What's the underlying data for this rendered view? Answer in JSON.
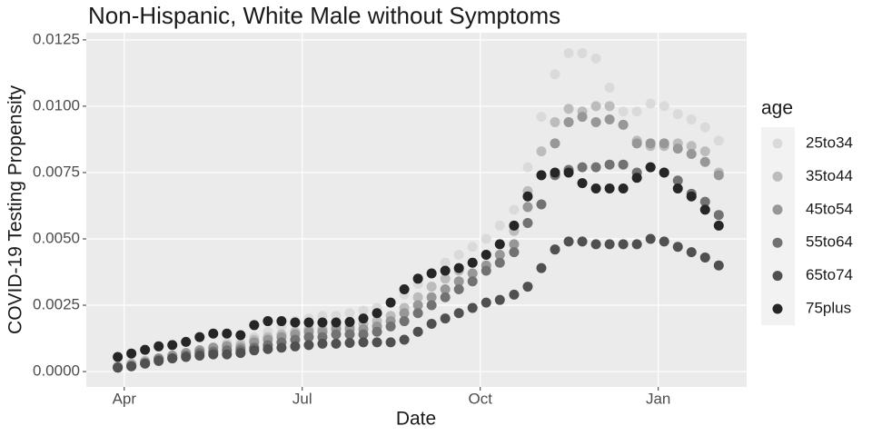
{
  "chart_data": {
    "type": "scatter",
    "title": "Non-Hispanic, White Male without Symptoms",
    "x_label": "Date",
    "y_label": "COVID-19 Testing Propensity",
    "legend_title": "age",
    "legend_position": "right",
    "grid": true,
    "xlim": [
      3.36,
      14.49
    ],
    "xticks": [
      {
        "value": 4,
        "label": "Apr"
      },
      {
        "value": 7,
        "label": "Jul"
      },
      {
        "value": 10,
        "label": "Oct"
      },
      {
        "value": 13,
        "label": "Jan"
      }
    ],
    "ylim": [
      -0.00058,
      0.01277
    ],
    "yticks": [
      {
        "value": 0,
        "label": "0.0000"
      },
      {
        "value": 0.0025,
        "label": "0.0025"
      },
      {
        "value": 0.005,
        "label": "0.0050"
      },
      {
        "value": 0.0075,
        "label": "0.0075"
      },
      {
        "value": 0.01,
        "label": "0.0100"
      },
      {
        "value": 0.0125,
        "label": "0.0125"
      }
    ],
    "x": [
      3.89,
      4.12,
      4.35,
      4.58,
      4.81,
      5.04,
      5.27,
      5.5,
      5.73,
      5.96,
      6.19,
      6.42,
      6.65,
      6.88,
      7.11,
      7.34,
      7.57,
      7.8,
      8.03,
      8.26,
      8.49,
      8.72,
      8.95,
      9.18,
      9.41,
      9.64,
      9.87,
      10.1,
      10.33,
      10.57,
      10.8,
      11.03,
      11.26,
      11.49,
      11.72,
      11.95,
      12.18,
      12.41,
      12.64,
      12.87,
      13.1,
      13.33,
      13.56,
      13.79,
      14.02
    ],
    "series": [
      {
        "name": "25to34",
        "color": "#dadada",
        "values": [
          0.0002,
          0.0003,
          0.0004,
          0.0005,
          0.0006,
          0.0007,
          0.0008,
          0.0009,
          0.0011,
          0.0011,
          0.0013,
          0.0015,
          0.0017,
          0.0019,
          0.002,
          0.0021,
          0.0021,
          0.0022,
          0.0023,
          0.0024,
          0.0026,
          0.0029,
          0.0033,
          0.0037,
          0.0041,
          0.0044,
          0.0047,
          0.005,
          0.0055,
          0.0061,
          0.0077,
          0.0096,
          0.0112,
          0.012,
          0.012,
          0.0118,
          0.0107,
          0.0098,
          0.0098,
          0.0101,
          0.01,
          0.0097,
          0.0095,
          0.0092,
          0.0087
        ]
      },
      {
        "name": "35to44",
        "color": "#bcbcbc",
        "values": [
          0.0002,
          0.0003,
          0.0004,
          0.0005,
          0.0006,
          0.0007,
          0.0008,
          0.0009,
          0.001,
          0.001,
          0.0012,
          0.0013,
          0.0014,
          0.0015,
          0.0016,
          0.0016,
          0.0017,
          0.0017,
          0.0018,
          0.0019,
          0.0021,
          0.0024,
          0.0028,
          0.0032,
          0.0035,
          0.0038,
          0.0041,
          0.0044,
          0.0048,
          0.0053,
          0.0068,
          0.0083,
          0.0094,
          0.0099,
          0.0098,
          0.01,
          0.01,
          0.0093,
          0.0087,
          0.0085,
          0.0085,
          0.0086,
          0.0085,
          0.0083,
          0.0075
        ]
      },
      {
        "name": "45to54",
        "color": "#979797",
        "values": [
          0.00015,
          0.00025,
          0.00035,
          0.0005,
          0.0006,
          0.0007,
          0.0008,
          0.0009,
          0.00095,
          0.0009,
          0.0011,
          0.0012,
          0.0013,
          0.0014,
          0.0015,
          0.0015,
          0.0016,
          0.0016,
          0.0016,
          0.0017,
          0.0019,
          0.0022,
          0.0025,
          0.0028,
          0.0031,
          0.0034,
          0.0037,
          0.004,
          0.0044,
          0.0048,
          0.0062,
          0.0074,
          0.0086,
          0.0094,
          0.0096,
          0.0094,
          0.0095,
          0.0093,
          0.0086,
          0.0086,
          0.0086,
          0.0084,
          0.0082,
          0.0079,
          0.0074
        ]
      },
      {
        "name": "55to64",
        "color": "#727272",
        "values": [
          0.00015,
          0.0002,
          0.0003,
          0.00045,
          0.0005,
          0.0006,
          0.0007,
          0.00075,
          0.0008,
          0.0008,
          0.0009,
          0.001,
          0.0011,
          0.0012,
          0.0013,
          0.0013,
          0.0014,
          0.0014,
          0.0014,
          0.0015,
          0.0017,
          0.0019,
          0.0022,
          0.0025,
          0.0028,
          0.0031,
          0.0034,
          0.0038,
          0.0041,
          0.0045,
          0.0056,
          0.0063,
          0.0074,
          0.0076,
          0.0077,
          0.0077,
          0.0078,
          0.0078,
          0.0075,
          0.0077,
          0.0075,
          0.0072,
          0.0067,
          0.0064,
          0.0059
        ]
      },
      {
        "name": "65to74",
        "color": "#505050",
        "values": [
          0.00015,
          0.0002,
          0.0003,
          0.0004,
          0.0005,
          0.00055,
          0.0006,
          0.00065,
          0.00065,
          0.0007,
          0.0008,
          0.00085,
          0.0009,
          0.00095,
          0.001,
          0.00105,
          0.00105,
          0.00108,
          0.0011,
          0.0011,
          0.0011,
          0.0012,
          0.0015,
          0.0018,
          0.002,
          0.0022,
          0.0024,
          0.0026,
          0.0027,
          0.0029,
          0.0032,
          0.0039,
          0.0046,
          0.0049,
          0.0049,
          0.0048,
          0.0048,
          0.0048,
          0.0048,
          0.005,
          0.0049,
          0.0047,
          0.0045,
          0.0043,
          0.004
        ]
      },
      {
        "name": "75plus",
        "color": "#262626",
        "values": [
          0.00055,
          0.00068,
          0.00082,
          0.00095,
          0.001,
          0.00112,
          0.0013,
          0.00143,
          0.00143,
          0.00137,
          0.00175,
          0.0019,
          0.0019,
          0.00185,
          0.00185,
          0.00185,
          0.00185,
          0.00187,
          0.002,
          0.0022,
          0.0026,
          0.0031,
          0.0035,
          0.0037,
          0.0038,
          0.0039,
          0.0041,
          0.0044,
          0.0048,
          0.0055,
          0.0066,
          0.0074,
          0.0075,
          0.0075,
          0.0071,
          0.0069,
          0.0069,
          0.0069,
          0.0073,
          0.0077,
          0.0075,
          0.0069,
          0.0066,
          0.0061,
          0.0055
        ]
      }
    ]
  }
}
